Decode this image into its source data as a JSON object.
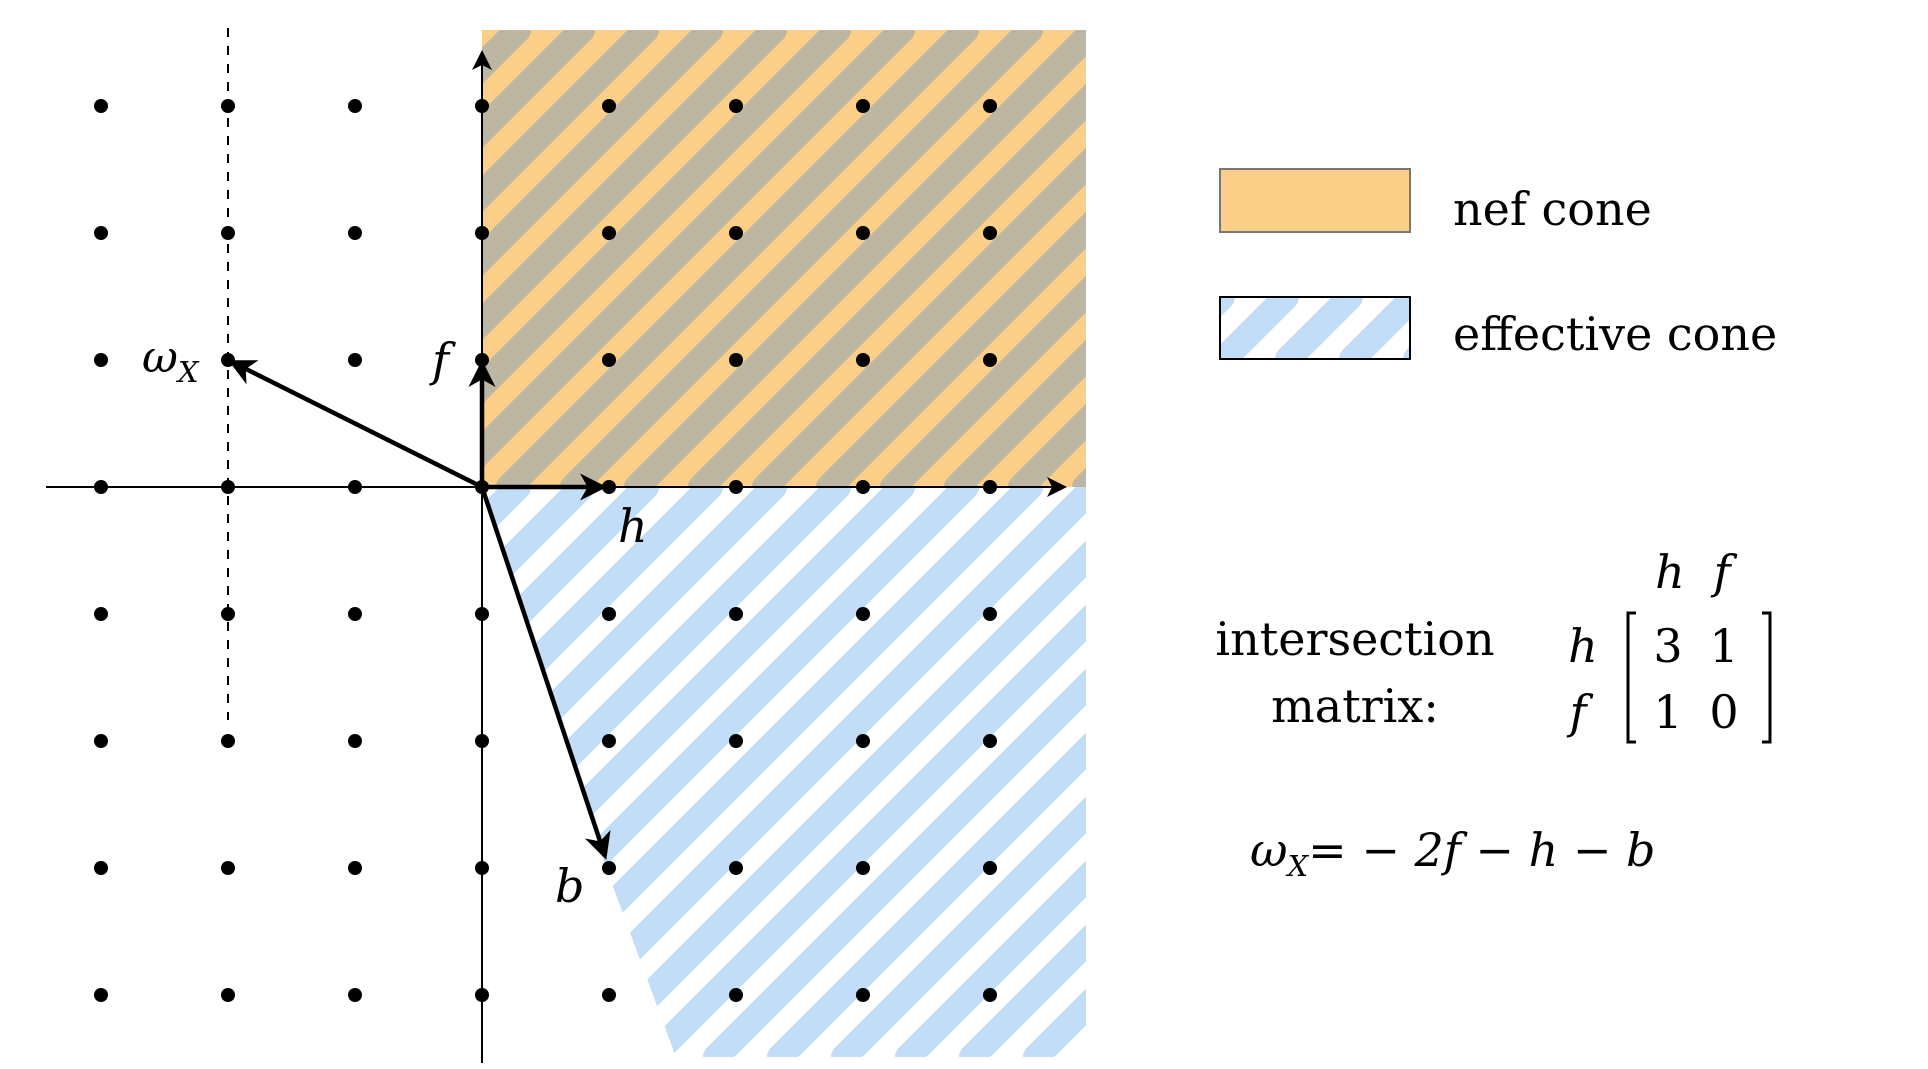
{
  "labels": {
    "omega_base": "ω",
    "omega_sub": "X",
    "f": "f",
    "h": "h",
    "b": "b"
  },
  "legend": {
    "nef_label": "nef cone",
    "effective_label": "effective cone"
  },
  "matrix": {
    "title_line1": "intersection",
    "title_line2": "matrix:",
    "col_headers": [
      "h",
      "f"
    ],
    "row_headers": [
      "h",
      "f"
    ],
    "values": [
      [
        "3",
        "1"
      ],
      [
        "1",
        "0"
      ]
    ]
  },
  "equation": {
    "lhs_base": "ω",
    "lhs_sub": "X",
    "rhs": "= − 2f − h − b"
  },
  "colors": {
    "nef_fill": "#FBCF87",
    "nef_stripe": "#BDB6A2",
    "effective_stripe": "#C2DDF8",
    "axis": "#000000",
    "lattice_dot": "#000000"
  }
}
